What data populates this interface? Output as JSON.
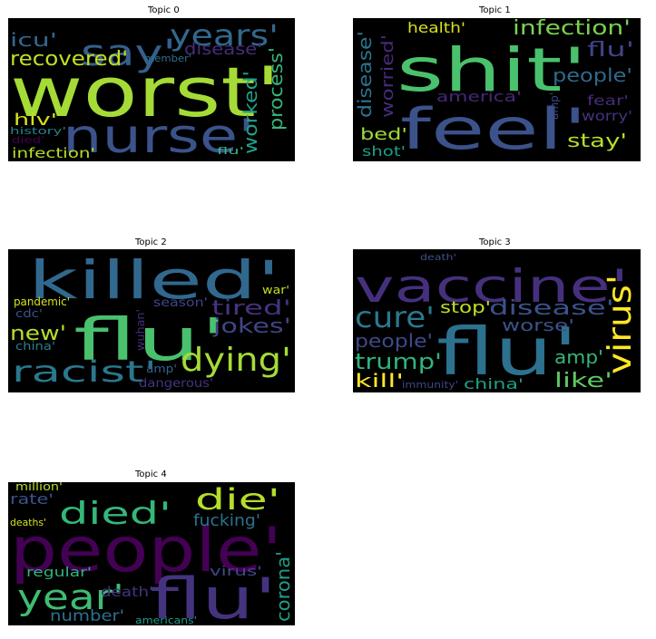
{
  "panels": [
    {
      "title": "Topic 0",
      "words": [
        {
          "text": "worst'",
          "color": "#a5db36"
        },
        {
          "text": "nurse'",
          "color": "#3b528b"
        },
        {
          "text": "say'",
          "color": "#355f8d"
        },
        {
          "text": "years'",
          "color": "#31688e"
        },
        {
          "text": "recovered'",
          "color": "#c2df23"
        },
        {
          "text": "icu'",
          "color": "#31688e"
        },
        {
          "text": "disease'",
          "color": "#472c7a"
        },
        {
          "text": "member'",
          "color": "#2c728e"
        },
        {
          "text": "worked'",
          "color": "#1fa187"
        },
        {
          "text": "process'",
          "color": "#35b779"
        },
        {
          "text": "hiv'",
          "color": "#d8e219"
        },
        {
          "text": "history'",
          "color": "#277f8e"
        },
        {
          "text": "died'",
          "color": "#440154"
        },
        {
          "text": "infection'",
          "color": "#b5de2b"
        },
        {
          "text": "flu'",
          "color": "#35b779"
        }
      ]
    },
    {
      "title": "Topic 1",
      "words": [
        {
          "text": "shit'",
          "color": "#4ac16d"
        },
        {
          "text": "feel'",
          "color": "#3b528b"
        },
        {
          "text": "infection'",
          "color": "#7ad151"
        },
        {
          "text": "health'",
          "color": "#d8e219"
        },
        {
          "text": "disease'",
          "color": "#2c728e"
        },
        {
          "text": "worried'",
          "color": "#472c7a"
        },
        {
          "text": "flu'",
          "color": "#414487"
        },
        {
          "text": "people'",
          "color": "#31688e"
        },
        {
          "text": "america'",
          "color": "#482878"
        },
        {
          "text": "fear'",
          "color": "#472c7a"
        },
        {
          "text": "worry'",
          "color": "#46337f"
        },
        {
          "text": "amp'",
          "color": "#3e4989"
        },
        {
          "text": "bed'",
          "color": "#a0da39"
        },
        {
          "text": "shot'",
          "color": "#1f9e89"
        },
        {
          "text": "stay'",
          "color": "#b5de2b"
        }
      ]
    },
    {
      "title": "Topic 2",
      "words": [
        {
          "text": "killed'",
          "color": "#31688e"
        },
        {
          "text": "flu'",
          "color": "#4ac16d"
        },
        {
          "text": "tired'",
          "color": "#46337f"
        },
        {
          "text": "jokes'",
          "color": "#414487"
        },
        {
          "text": "dying'",
          "color": "#a5db36"
        },
        {
          "text": "racist'",
          "color": "#2a788e"
        },
        {
          "text": "new'",
          "color": "#b5de2b"
        },
        {
          "text": "pandemic'",
          "color": "#d8e219"
        },
        {
          "text": "cdc'",
          "color": "#3b528b"
        },
        {
          "text": "china'",
          "color": "#277f8e"
        },
        {
          "text": "season'",
          "color": "#404688"
        },
        {
          "text": "wuhan'",
          "color": "#472c7a"
        },
        {
          "text": "war'",
          "color": "#c2df23"
        },
        {
          "text": "amp'",
          "color": "#33638d"
        },
        {
          "text": "dangerous'",
          "color": "#46337f"
        }
      ]
    },
    {
      "title": "Topic 3",
      "words": [
        {
          "text": "vaccine'",
          "color": "#46307e"
        },
        {
          "text": "flu'",
          "color": "#2c728e"
        },
        {
          "text": "virus'",
          "color": "#fde725"
        },
        {
          "text": "cure'",
          "color": "#2a788e"
        },
        {
          "text": "disease'",
          "color": "#3b528b"
        },
        {
          "text": "stop'",
          "color": "#c2df23"
        },
        {
          "text": "worse'",
          "color": "#3b528b"
        },
        {
          "text": "people'",
          "color": "#3e4989"
        },
        {
          "text": "trump'",
          "color": "#2fb47c"
        },
        {
          "text": "amp'",
          "color": "#35b779"
        },
        {
          "text": "like'",
          "color": "#5ec962"
        },
        {
          "text": "kill'",
          "color": "#fde725"
        },
        {
          "text": "china'",
          "color": "#1fa187"
        },
        {
          "text": "immunity'",
          "color": "#404688"
        },
        {
          "text": "death'",
          "color": "#3b528b"
        }
      ]
    },
    {
      "title": "Topic 4",
      "words": [
        {
          "text": "people'",
          "color": "#440154"
        },
        {
          "text": "flu'",
          "color": "#46337f"
        },
        {
          "text": "died'",
          "color": "#35b779"
        },
        {
          "text": "die'",
          "color": "#b5de2b"
        },
        {
          "text": "year'",
          "color": "#3fbc73"
        },
        {
          "text": "corona'",
          "color": "#1f9e89"
        },
        {
          "text": "rate'",
          "color": "#3b528b"
        },
        {
          "text": "million'",
          "color": "#b5de2b"
        },
        {
          "text": "fucking'",
          "color": "#2c728e"
        },
        {
          "text": "deaths'",
          "color": "#d8e219"
        },
        {
          "text": "regular'",
          "color": "#2fb47c"
        },
        {
          "text": "virus'",
          "color": "#3e4989"
        },
        {
          "text": "death'",
          "color": "#46337f"
        },
        {
          "text": "number'",
          "color": "#2c728e"
        },
        {
          "text": "americans'",
          "color": "#1f9e89"
        }
      ]
    }
  ]
}
